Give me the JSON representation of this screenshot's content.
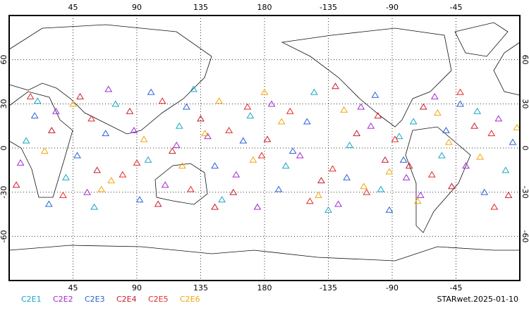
{
  "chart_data": {
    "type": "scatter",
    "xlim": [
      0,
      360
    ],
    "ylim": [
      -90,
      90
    ],
    "xticks": [
      45,
      90,
      135,
      180,
      {
        "value": 225,
        "label": "-135"
      },
      {
        "value": 270,
        "label": "-90"
      },
      {
        "value": 315,
        "label": "-45"
      }
    ],
    "yticks": [
      -60,
      -30,
      0,
      30,
      60
    ],
    "grid": true,
    "footer": "STARwet.2025-01-10",
    "series": [
      {
        "name": "C2E1",
        "color": "#1aa7c4",
        "x": [
          12,
          40,
          75,
          98,
          120,
          150,
          170,
          195,
          215,
          240,
          262,
          285,
          305,
          330,
          350,
          60,
          130,
          225,
          275,
          20
        ],
        "y": [
          5,
          -20,
          30,
          -8,
          15,
          -35,
          22,
          -12,
          38,
          2,
          -28,
          18,
          -5,
          25,
          -15,
          -40,
          40,
          -42,
          8,
          32
        ]
      },
      {
        "name": "C2E2",
        "color": "#a22bd0",
        "x": [
          8,
          33,
          55,
          88,
          110,
          140,
          160,
          185,
          205,
          232,
          255,
          280,
          300,
          322,
          345,
          70,
          175,
          248,
          290,
          118
        ],
        "y": [
          -10,
          25,
          -30,
          12,
          -25,
          8,
          -18,
          30,
          -5,
          -38,
          15,
          -20,
          35,
          -12,
          20,
          40,
          -40,
          28,
          -32,
          2
        ]
      },
      {
        "name": "C2E3",
        "color": "#2a63d4",
        "x": [
          18,
          48,
          68,
          92,
          125,
          145,
          165,
          190,
          210,
          238,
          258,
          278,
          308,
          335,
          355,
          28,
          100,
          200,
          268,
          318
        ],
        "y": [
          22,
          -5,
          10,
          -35,
          28,
          -12,
          5,
          -28,
          18,
          -20,
          36,
          -8,
          12,
          -30,
          4,
          -38,
          38,
          -2,
          -42,
          30
        ]
      },
      {
        "name": "C2E4",
        "color": "#c81e2c",
        "x": [
          5,
          30,
          62,
          85,
          115,
          135,
          158,
          182,
          220,
          245,
          265,
          292,
          312,
          328,
          352,
          50,
          145,
          230,
          282,
          105
        ],
        "y": [
          -25,
          12,
          -15,
          25,
          -2,
          20,
          -30,
          6,
          -22,
          10,
          -8,
          28,
          -26,
          15,
          -32,
          35,
          -40,
          42,
          -12,
          -38
        ]
      },
      {
        "name": "C2E5",
        "color": "#e22a2a",
        "x": [
          15,
          38,
          58,
          80,
          108,
          128,
          155,
          178,
          198,
          228,
          252,
          272,
          298,
          318,
          340,
          90,
          168,
          212,
          260,
          342
        ],
        "y": [
          35,
          -32,
          20,
          -18,
          32,
          -28,
          12,
          -5,
          25,
          -14,
          -30,
          6,
          -18,
          38,
          10,
          -10,
          28,
          -36,
          22,
          -40
        ]
      },
      {
        "name": "C2E6",
        "color": "#f2a60a",
        "x": [
          25,
          45,
          72,
          95,
          122,
          148,
          172,
          192,
          218,
          236,
          268,
          288,
          310,
          332,
          358,
          65,
          138,
          250,
          302,
          180
        ],
        "y": [
          -2,
          30,
          -22,
          6,
          -12,
          32,
          -8,
          18,
          -32,
          26,
          -16,
          -36,
          4,
          -6,
          14,
          -28,
          10,
          -26,
          24,
          38
        ]
      }
    ]
  }
}
